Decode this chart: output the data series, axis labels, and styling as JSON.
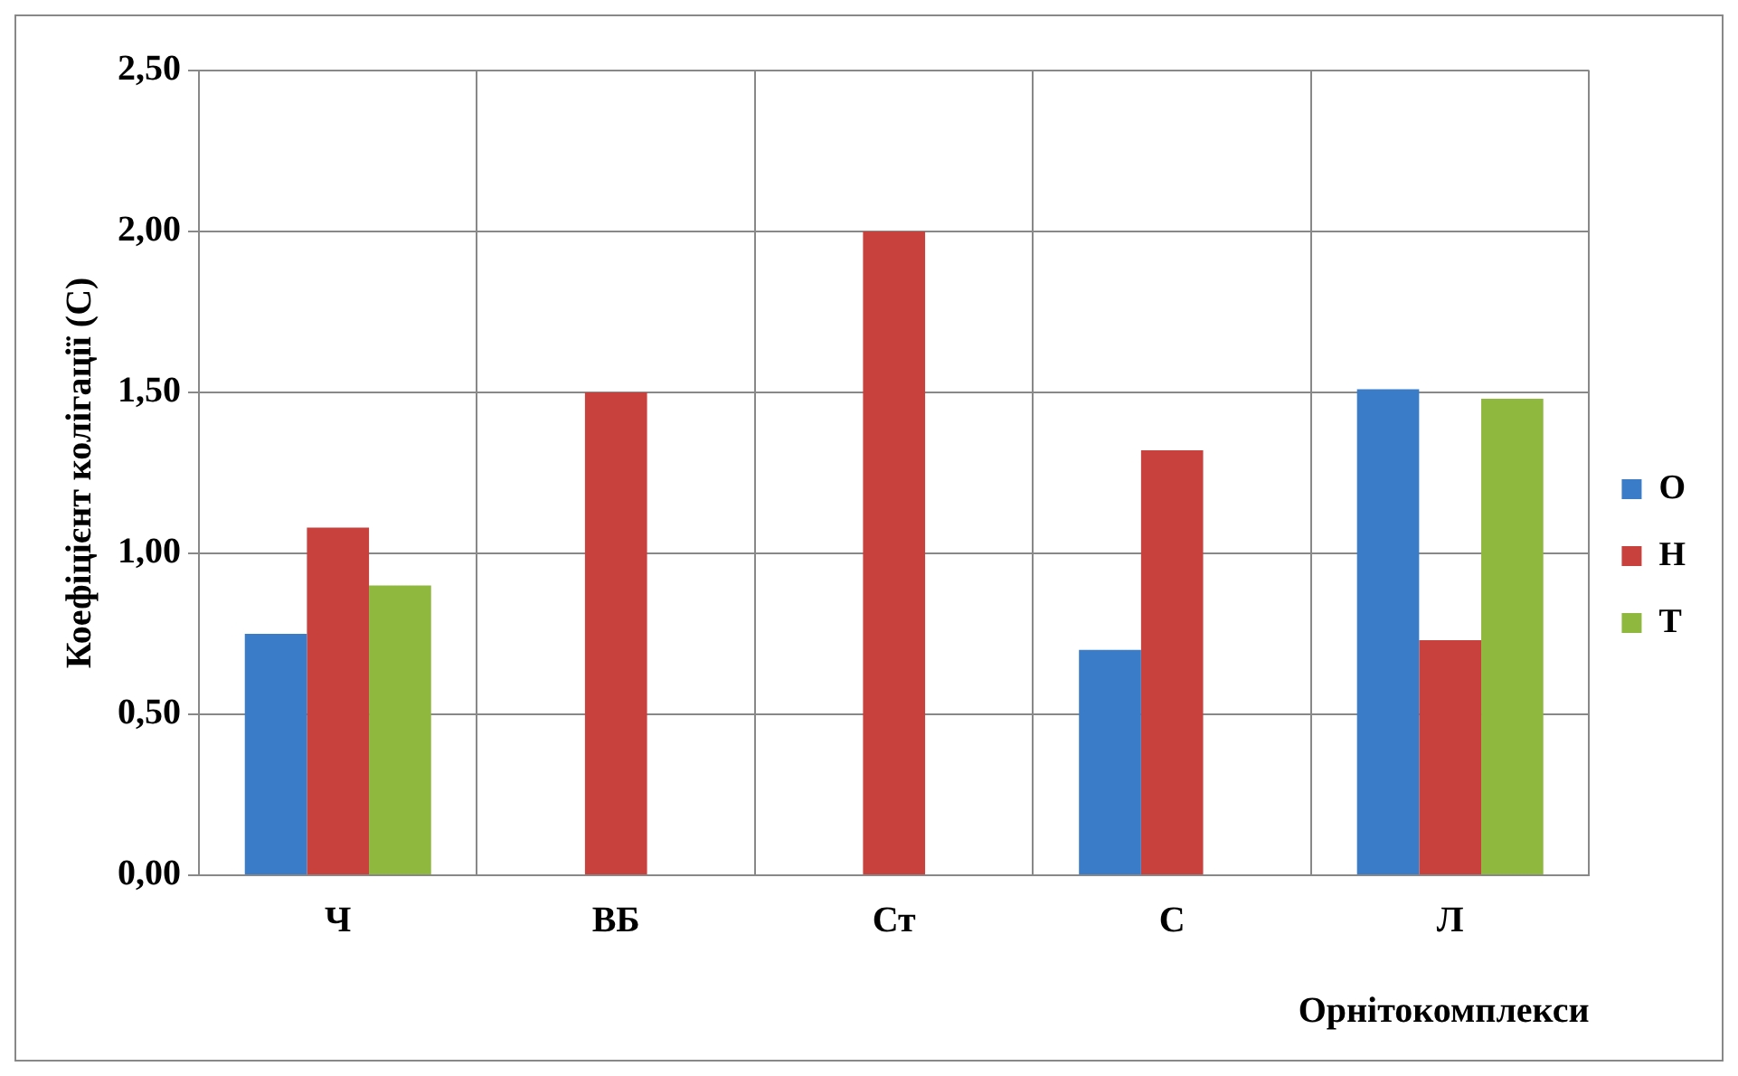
{
  "chart_data": {
    "type": "bar",
    "xlabel": "Орнітокомплекси",
    "ylabel": "Коефіцієнт колігації (С)",
    "categories": [
      "Ч",
      "ВБ",
      "Ст",
      "С",
      "Л"
    ],
    "series": [
      {
        "name": "О",
        "color": "#3a7cc8",
        "values": [
          0.75,
          null,
          null,
          0.7,
          1.51
        ]
      },
      {
        "name": "Н",
        "color": "#c8413d",
        "values": [
          1.08,
          1.5,
          2.0,
          1.32,
          0.73
        ]
      },
      {
        "name": "Т",
        "color": "#8fb83e",
        "values": [
          0.9,
          null,
          null,
          null,
          1.48
        ]
      }
    ],
    "ylim": [
      0,
      2.5
    ],
    "yticks": [
      {
        "value": 0,
        "label": "0,00"
      },
      {
        "value": 0.5,
        "label": "0,50"
      },
      {
        "value": 1,
        "label": "1,00"
      },
      {
        "value": 1.5,
        "label": "1,50"
      },
      {
        "value": 2,
        "label": "2,00"
      },
      {
        "value": 2.5,
        "label": "2,50"
      }
    ],
    "grid": true,
    "legend": "right"
  }
}
